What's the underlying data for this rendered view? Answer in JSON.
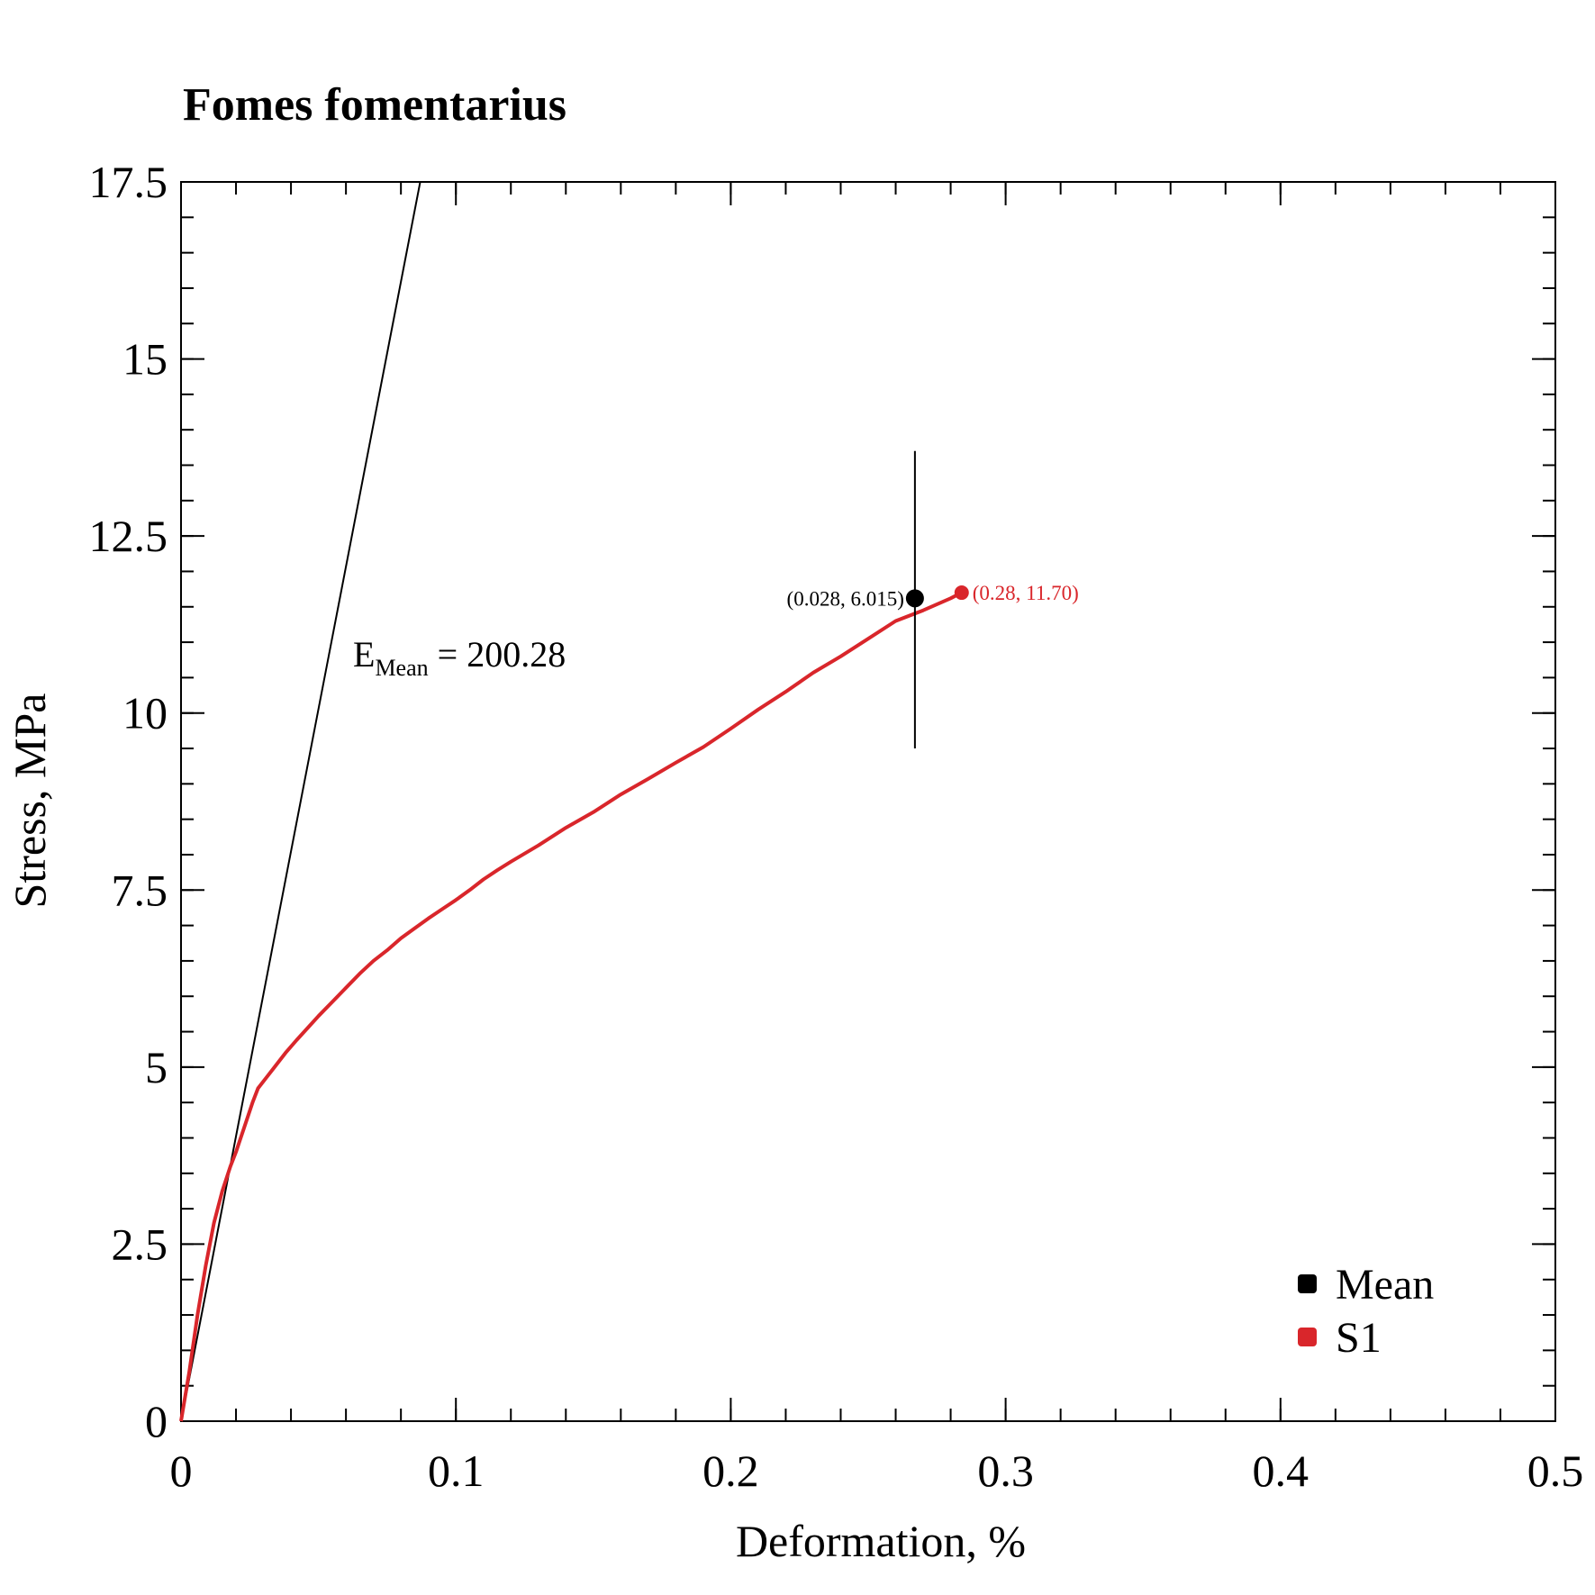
{
  "colors": {
    "background": "#ffffff",
    "axis": "#000000",
    "s1": "#d9262b",
    "mean": "#000000",
    "fit_line": "#000000"
  },
  "chart_data": {
    "type": "line",
    "title": "Fomes fomentarius",
    "xlabel": "Deformation, %",
    "ylabel": "Stress, MPa",
    "xlim": [
      0,
      0.5
    ],
    "ylim": [
      0,
      17.5
    ],
    "x_ticks": [
      0,
      0.1,
      0.2,
      0.3,
      0.4,
      0.5
    ],
    "x_tick_labels": [
      "0",
      "0.1",
      "0.2",
      "0.3",
      "0.4",
      "0.5"
    ],
    "y_ticks": [
      0,
      2.5,
      5,
      7.5,
      10,
      12.5,
      15,
      17.5
    ],
    "y_tick_labels": [
      "0",
      "2.5",
      "5",
      "7.5",
      "10",
      "12.5",
      "15",
      "17.5"
    ],
    "grid": false,
    "legend_position": "bottom-right",
    "legend": [
      {
        "label": "Mean",
        "color": "#000000"
      },
      {
        "label": "S1",
        "color": "#d9262b"
      }
    ],
    "modulus_annotation": {
      "symbol": "E",
      "subscript": "Mean",
      "text": " = 200.28"
    },
    "modulus_line": {
      "x": [
        0,
        0.0895
      ],
      "y": [
        0,
        18.0
      ]
    },
    "series": [
      {
        "name": "S1",
        "color": "#d9262b",
        "x": [
          0,
          0.003,
          0.006,
          0.009,
          0.012,
          0.015,
          0.018,
          0.02,
          0.023,
          0.026,
          0.028,
          0.031,
          0.034,
          0.038,
          0.042,
          0.046,
          0.05,
          0.055,
          0.06,
          0.065,
          0.07,
          0.075,
          0.08,
          0.085,
          0.09,
          0.095,
          0.1,
          0.105,
          0.11,
          0.115,
          0.12,
          0.13,
          0.14,
          0.15,
          0.16,
          0.17,
          0.18,
          0.19,
          0.2,
          0.21,
          0.22,
          0.23,
          0.24,
          0.25,
          0.26,
          0.27,
          0.28,
          0.284
        ],
        "y": [
          0,
          0.7,
          1.5,
          2.2,
          2.8,
          3.25,
          3.6,
          3.8,
          4.15,
          4.5,
          4.7,
          4.85,
          5.0,
          5.2,
          5.38,
          5.55,
          5.72,
          5.92,
          6.12,
          6.32,
          6.5,
          6.65,
          6.82,
          6.96,
          7.1,
          7.23,
          7.36,
          7.5,
          7.65,
          7.78,
          7.9,
          8.13,
          8.38,
          8.6,
          8.85,
          9.07,
          9.3,
          9.52,
          9.78,
          10.05,
          10.3,
          10.57,
          10.8,
          11.05,
          11.3,
          11.45,
          11.62,
          11.7
        ]
      },
      {
        "name": "Mean",
        "color": "#000000",
        "x": [
          0.267
        ],
        "y": [
          11.62
        ],
        "error_y": [
          9.5,
          13.7
        ]
      }
    ],
    "annotations": [
      {
        "text": "(0.028, 6.015)",
        "color": "#000000",
        "x": 0.267,
        "y": 11.62,
        "anchor": "left-of-point"
      },
      {
        "text": "(0.28, 11.70)",
        "color": "#d9262b",
        "x": 0.284,
        "y": 11.7,
        "anchor": "right-of-point"
      }
    ],
    "s1_endpoint": {
      "x": 0.284,
      "y": 11.7
    }
  }
}
